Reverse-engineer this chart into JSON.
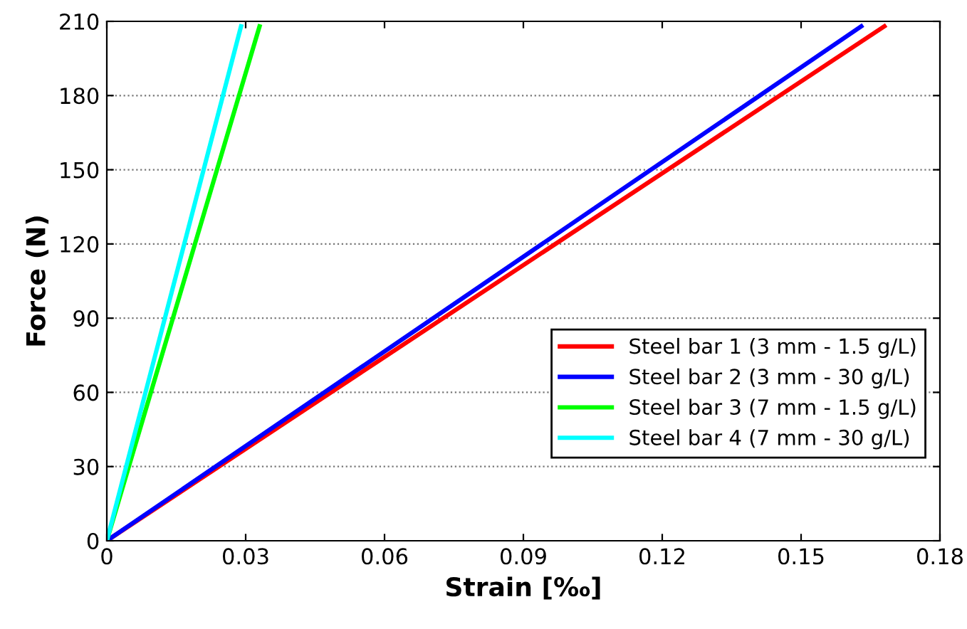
{
  "chart_data": {
    "type": "line",
    "xlabel": "Strain [‰]",
    "ylabel": "Force (N)",
    "xlim": [
      0,
      0.18
    ],
    "xticks": [
      0,
      0.03,
      0.06,
      0.09,
      0.12,
      0.15,
      0.18
    ],
    "ylim": [
      0,
      210
    ],
    "yticks": [
      0,
      30,
      60,
      90,
      120,
      150,
      180,
      210
    ],
    "grid": "y",
    "legend": "lower right",
    "line_style": "solid",
    "marker": "none",
    "series": [
      {
        "name": "Steel bar 1 (3 mm - 1.5 g/L)",
        "color": "#ff0000",
        "x": [
          0,
          0.168
        ],
        "values": [
          0,
          208
        ]
      },
      {
        "name": "Steel bar 2 (3 mm - 30 g/L)",
        "color": "#0000ff",
        "x": [
          0,
          0.163
        ],
        "values": [
          0,
          208
        ]
      },
      {
        "name": "Steel bar 3 (7 mm - 1.5 g/L)",
        "color": "#00ff00",
        "x": [
          0,
          0.033
        ],
        "values": [
          0,
          208
        ]
      },
      {
        "name": "Steel bar 4 (7 mm - 30 g/L)",
        "color": "#00ffff",
        "x": [
          0,
          0.029
        ],
        "values": [
          0,
          208
        ]
      }
    ]
  }
}
